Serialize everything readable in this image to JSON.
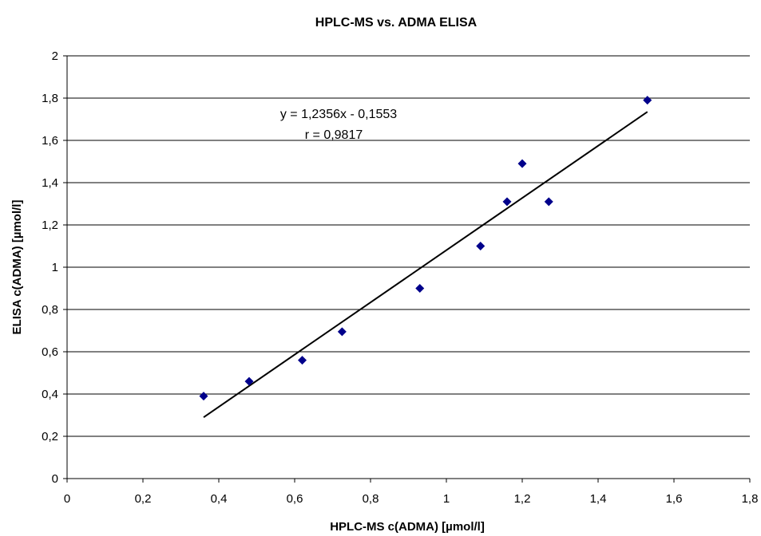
{
  "chart_data": {
    "type": "scatter",
    "title": "HPLC-MS vs. ADMA ELISA",
    "xlabel": "HPLC-MS c(ADMA)  [µmol/l]",
    "ylabel": "ELISA  c(ADMA)  [µmol/l]",
    "xlim": [
      0,
      1.8
    ],
    "ylim": [
      0,
      2
    ],
    "xticks": [
      "0",
      "0,2",
      "0,4",
      "0,6",
      "0,8",
      "1",
      "1,2",
      "1,4",
      "1,6",
      "1,8"
    ],
    "yticks": [
      "0",
      "0,2",
      "0,4",
      "0,6",
      "0,8",
      "1",
      "1,2",
      "1,4",
      "1,6",
      "1,8",
      "2"
    ],
    "grid": "horizontal",
    "marker_color": "#00008B",
    "points": [
      {
        "x": 0.36,
        "y": 0.39
      },
      {
        "x": 0.48,
        "y": 0.46
      },
      {
        "x": 0.62,
        "y": 0.56
      },
      {
        "x": 0.725,
        "y": 0.695
      },
      {
        "x": 0.93,
        "y": 0.9
      },
      {
        "x": 1.09,
        "y": 1.1
      },
      {
        "x": 1.16,
        "y": 1.31
      },
      {
        "x": 1.2,
        "y": 1.49
      },
      {
        "x": 1.27,
        "y": 1.31
      },
      {
        "x": 1.53,
        "y": 1.79
      }
    ],
    "trendline": {
      "x": [
        0.36,
        1.53
      ],
      "y": [
        0.29,
        1.735
      ]
    },
    "annotations": [
      "y = 1,2356x - 0,1553",
      "r = 0,9817"
    ]
  }
}
